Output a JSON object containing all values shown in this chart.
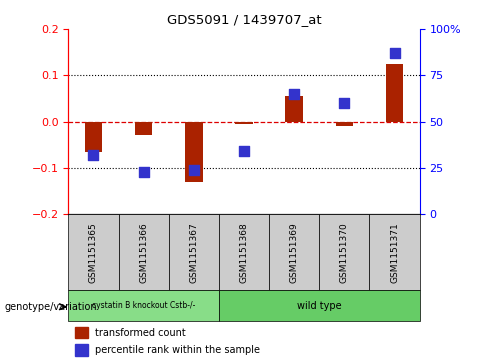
{
  "title": "GDS5091 / 1439707_at",
  "samples": [
    "GSM1151365",
    "GSM1151366",
    "GSM1151367",
    "GSM1151368",
    "GSM1151369",
    "GSM1151370",
    "GSM1151371"
  ],
  "red_values": [
    -0.065,
    -0.03,
    -0.13,
    -0.005,
    0.055,
    -0.01,
    0.125
  ],
  "blue_values_pct": [
    32,
    23,
    24,
    34,
    65,
    60,
    87
  ],
  "ylim_left": [
    -0.2,
    0.2
  ],
  "ylim_right": [
    0,
    100
  ],
  "yticks_left": [
    -0.2,
    -0.1,
    0.0,
    0.1,
    0.2
  ],
  "yticks_right": [
    0,
    25,
    50,
    75,
    100
  ],
  "red_color": "#aa2200",
  "blue_color": "#3333cc",
  "dashed_red": "#dd0000",
  "group1_label": "cystatin B knockout Cstb-/-",
  "group2_label": "wild type",
  "group1_count": 3,
  "group2_count": 4,
  "genotype_label": "genotype/variation",
  "legend_red": "transformed count",
  "legend_blue": "percentile rank within the sample",
  "bar_width": 0.35,
  "blue_marker_size": 55,
  "bg_color_plot": "#ffffff",
  "bg_color_xtick": "#cccccc",
  "bg_color_group1": "#88dd88",
  "bg_color_group2": "#66cc66"
}
